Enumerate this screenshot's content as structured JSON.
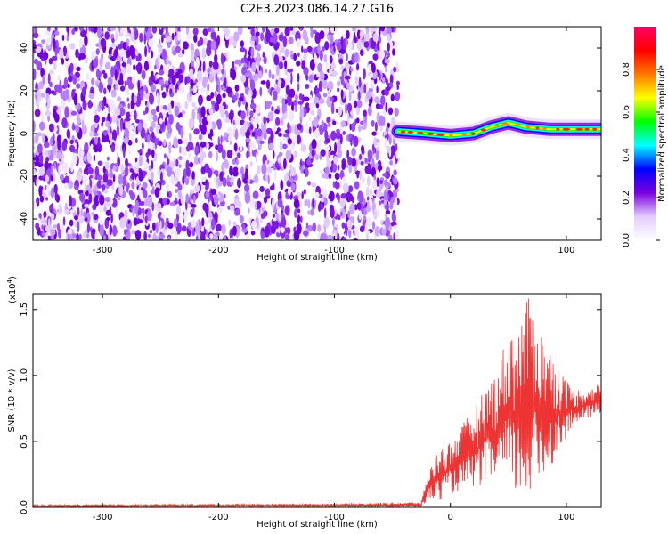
{
  "title": "C2E3.2023.086.14.27.G16",
  "chart_data": [
    {
      "type": "heatmap",
      "xlabel": "Height of straight line (km)",
      "ylabel": "Frequency (Hz)",
      "xlim": [
        -360,
        130
      ],
      "ylim": [
        -50,
        50
      ],
      "x_ticks": [
        -300,
        -200,
        -100,
        0,
        100
      ],
      "y_ticks": [
        -40,
        -20,
        0,
        20,
        40
      ],
      "noise_region_x": [
        -360,
        -45
      ],
      "ridge": [
        {
          "x": -45,
          "y": 1
        },
        {
          "x": -20,
          "y": 0
        },
        {
          "x": 0,
          "y": -1
        },
        {
          "x": 20,
          "y": 0
        },
        {
          "x": 35,
          "y": 3
        },
        {
          "x": 50,
          "y": 5
        },
        {
          "x": 65,
          "y": 3
        },
        {
          "x": 85,
          "y": 2
        },
        {
          "x": 100,
          "y": 2
        },
        {
          "x": 130,
          "y": 2
        }
      ],
      "colorbar": {
        "label": "Normalized spectral amplitude",
        "range": [
          0,
          1
        ],
        "ticks": [
          0.0,
          0.2,
          0.4,
          0.6,
          0.8
        ],
        "colors": [
          "#ffffff",
          "#e3ccff",
          "#7a00e0",
          "#0000ff",
          "#00ffff",
          "#00ff00",
          "#ffff00",
          "#ff7700",
          "#ff0000",
          "#ff0066"
        ]
      }
    },
    {
      "type": "line",
      "xlabel": "Height of straight line (km)",
      "ylabel": "SNR (10 * v/v)",
      "scale_label": "(x10",
      "scale_exp": "4",
      "scale_close": ")",
      "xlim": [
        -360,
        130
      ],
      "ylim": [
        0,
        1.62
      ],
      "x_ticks": [
        -300,
        -200,
        -100,
        0,
        100
      ],
      "y_ticks": [
        0.0,
        0.5,
        1.0,
        1.5
      ],
      "series": [
        {
          "color": "#ee3333",
          "envelope": [
            {
              "x": -360,
              "lo": 0.0,
              "hi": 0.02
            },
            {
              "x": -100,
              "lo": 0.0,
              "hi": 0.03
            },
            {
              "x": -25,
              "lo": 0.0,
              "hi": 0.04
            },
            {
              "x": -20,
              "lo": 0.05,
              "hi": 0.25
            },
            {
              "x": -10,
              "lo": 0.05,
              "hi": 0.45
            },
            {
              "x": 0,
              "lo": 0.1,
              "hi": 0.5
            },
            {
              "x": 20,
              "lo": 0.15,
              "hi": 0.75
            },
            {
              "x": 40,
              "lo": 0.2,
              "hi": 1.05
            },
            {
              "x": 50,
              "lo": 0.15,
              "hi": 1.35
            },
            {
              "x": 60,
              "lo": 0.05,
              "hi": 1.4
            },
            {
              "x": 68,
              "lo": 0.05,
              "hi": 1.62
            },
            {
              "x": 80,
              "lo": 0.2,
              "hi": 1.3
            },
            {
              "x": 95,
              "lo": 0.45,
              "hi": 1.05
            },
            {
              "x": 105,
              "lo": 0.6,
              "hi": 0.9
            },
            {
              "x": 120,
              "lo": 0.68,
              "hi": 0.9
            },
            {
              "x": 130,
              "lo": 0.7,
              "hi": 0.95
            }
          ]
        }
      ]
    }
  ]
}
